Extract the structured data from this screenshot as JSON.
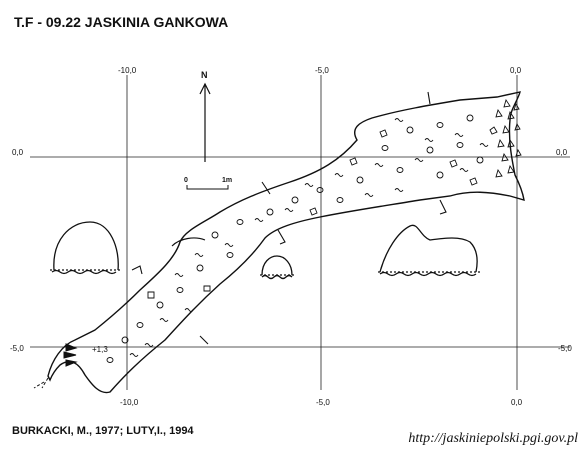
{
  "title": "T.F - 09.22  JASKINIA GANKOWA",
  "credit": "BURKACKI, M., 1977; LUTY,I., 1994",
  "url": "http://jaskiniepolski.pgi.gov.pl",
  "grid": {
    "top_labels": [
      "-10,0",
      "-5,0",
      "0,0"
    ],
    "bottom_labels": [
      "-10,0",
      "-5,0",
      "0,0"
    ],
    "left_labels": [
      "0,0",
      "-5,0"
    ],
    "right_labels": [
      "0,0",
      "-5,0"
    ]
  },
  "north": "N",
  "scale": {
    "start": "0",
    "end": "1m"
  },
  "depth_marker": "+1,3",
  "colors": {
    "ink": "#111111",
    "background": "#ffffff"
  }
}
